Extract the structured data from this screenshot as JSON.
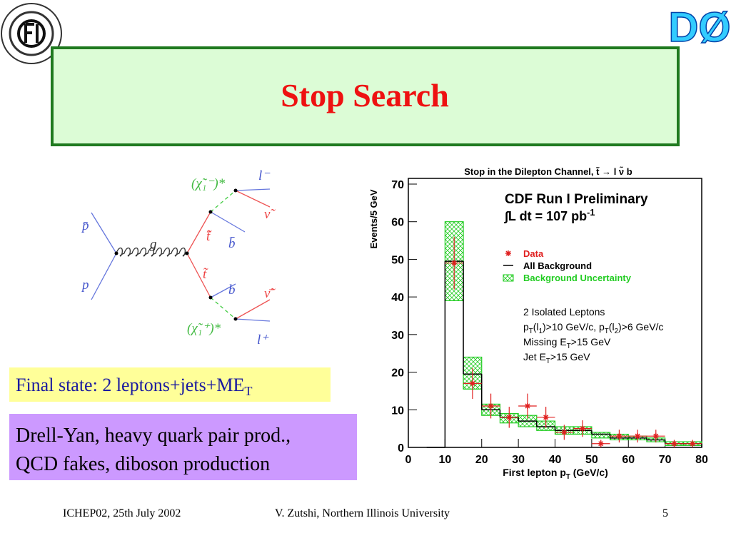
{
  "header": {
    "title": "Stop Search",
    "logo_right": "DØ"
  },
  "diagram": {
    "pbar": "p̄",
    "p": "p",
    "g": "g",
    "stopbar": "t̃̄",
    "bbar": "b̄",
    "stop": "t̃",
    "b": "b",
    "chargino_minus": "(χ̃₁⁻)*",
    "lepton_minus": "l⁻",
    "snu": "ν̃",
    "snubar": "ν̃̄",
    "chargino_plus": "(χ̃₁⁺)*",
    "lepton_plus": "l⁺"
  },
  "final_state": [
    "Final state: 2 leptons+jets+ME",
    "T"
  ],
  "backgrounds": [
    "Drell-Yan, heavy quark pair prod.,",
    "QCD fakes, diboson production"
  ],
  "footer": {
    "left": "ICHEP02, 25th July 2002",
    "center": "V. Zutshi, Northern Illinois University",
    "page": "5"
  },
  "chart_data": {
    "type": "histogram",
    "title": "Stop in the Dilepton Channel, t̃ → l ν̃ b",
    "y_label": "Events/5 GeV",
    "x_label": [
      "First lepton p",
      "T",
      " (GeV/c)"
    ],
    "annotation": "CDF Run I Preliminary",
    "luminosity": {
      "text": "∫L dt = 107 pb",
      "sup": "-1"
    },
    "cuts": [
      [
        "2 Isolated Leptons"
      ],
      [
        "p",
        "T",
        "(l",
        "1",
        ")>10 GeV/c, p",
        "T",
        "(l",
        "2",
        ")>6 GeV/c"
      ],
      [
        "Missing E",
        "T",
        ">15 GeV"
      ],
      [
        "Jet E",
        "T",
        ">15 GeV"
      ]
    ],
    "bins": [
      5,
      10,
      15,
      20,
      25,
      30,
      35,
      40,
      45,
      50,
      55,
      60,
      65,
      70,
      75,
      80
    ],
    "series": [
      {
        "name": "Data",
        "color": "#e02020",
        "x": [
          12.5,
          17.5,
          22.5,
          27.5,
          32.5,
          37.5,
          42.5,
          47.5,
          52.5,
          57.5,
          62.5,
          67.5,
          72.5,
          77.5
        ],
        "values": [
          49,
          17,
          11,
          8,
          11,
          8,
          4,
          5,
          1,
          3,
          3,
          3,
          1,
          1
        ],
        "errors": [
          7,
          4.1,
          3.3,
          2.8,
          3.3,
          2.8,
          2,
          2.2,
          1,
          1.7,
          1.7,
          1.7,
          1,
          1
        ]
      },
      {
        "name": "All Background",
        "color": "#000000",
        "values": [
          0,
          49.5,
          19.5,
          10,
          8,
          7,
          5.5,
          4.5,
          4.5,
          3.5,
          2.5,
          2.5,
          2,
          1,
          1
        ]
      },
      {
        "name": "Background Uncertainty",
        "color": "#22cc22",
        "low": [
          0,
          39,
          15.5,
          8.5,
          6.5,
          5.5,
          4.5,
          3.5,
          3.5,
          2.5,
          2,
          2,
          1.5,
          0.5,
          0.5
        ],
        "high": [
          0,
          60,
          24,
          11.5,
          9,
          8.5,
          7,
          5.5,
          5.5,
          4,
          3.5,
          3,
          2.5,
          1.5,
          1.5
        ]
      }
    ],
    "xlim": [
      0,
      80
    ],
    "ylim": [
      0,
      70
    ],
    "xticks": [
      0,
      10,
      20,
      30,
      40,
      50,
      60,
      70,
      80
    ],
    "yticks": [
      0,
      10,
      20,
      30,
      40,
      50,
      60,
      70
    ]
  }
}
